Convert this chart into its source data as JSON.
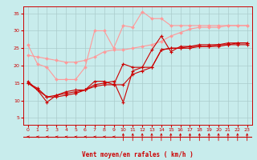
{
  "title": "",
  "xlabel": "Vent moyen/en rafales ( km/h )",
  "ylabel": "",
  "xlim": [
    -0.5,
    23.5
  ],
  "ylim": [
    3,
    37
  ],
  "yticks": [
    5,
    10,
    15,
    20,
    25,
    30,
    35
  ],
  "xticks": [
    0,
    1,
    2,
    3,
    4,
    5,
    6,
    7,
    8,
    9,
    10,
    11,
    12,
    13,
    14,
    15,
    16,
    17,
    18,
    19,
    20,
    21,
    22,
    23
  ],
  "background_color": "#c8ecec",
  "grid_color": "#aacccc",
  "line_color_dark": "#cc0000",
  "line_color_light": "#ff9999",
  "series_light": [
    [
      26.0,
      20.5,
      19.5,
      16.0,
      16.0,
      16.0,
      19.5,
      30.0,
      30.0,
      25.0,
      31.5,
      31.0,
      35.5,
      33.5,
      33.5,
      31.5,
      31.5,
      31.5,
      31.5,
      31.5,
      31.5,
      31.5,
      31.5,
      31.5
    ],
    [
      23.0,
      22.5,
      22.0,
      21.5,
      21.0,
      21.0,
      21.5,
      22.5,
      24.0,
      24.5,
      24.5,
      25.0,
      25.5,
      26.0,
      27.0,
      28.5,
      29.5,
      30.5,
      31.0,
      31.0,
      31.0,
      31.5,
      31.5,
      31.5
    ]
  ],
  "series_dark": [
    [
      15.5,
      13.0,
      9.5,
      11.5,
      12.5,
      13.0,
      13.0,
      15.5,
      15.5,
      14.5,
      20.5,
      19.5,
      19.5,
      24.5,
      28.5,
      24.0,
      25.5,
      25.5,
      26.0,
      26.0,
      26.0,
      26.5,
      26.5,
      26.5
    ],
    [
      15.0,
      13.5,
      11.0,
      11.5,
      12.0,
      12.5,
      13.0,
      14.5,
      15.0,
      15.5,
      9.5,
      18.5,
      19.5,
      19.5,
      24.5,
      25.0,
      25.0,
      25.5,
      25.5,
      25.5,
      25.5,
      26.0,
      26.0,
      26.0
    ],
    [
      15.0,
      13.0,
      11.0,
      11.0,
      11.5,
      12.0,
      13.0,
      14.0,
      14.5,
      14.5,
      14.5,
      17.5,
      18.5,
      19.5,
      24.5,
      25.0,
      25.0,
      25.0,
      25.5,
      25.5,
      26.0,
      26.0,
      26.5,
      26.5
    ]
  ],
  "wind_dirs_left": [
    0,
    1,
    2,
    3,
    4,
    5,
    6,
    7,
    8,
    9
  ],
  "wind_dirs_up": [
    10,
    11,
    12,
    13,
    14,
    15,
    16,
    17,
    18,
    19,
    20,
    21,
    22,
    23
  ]
}
